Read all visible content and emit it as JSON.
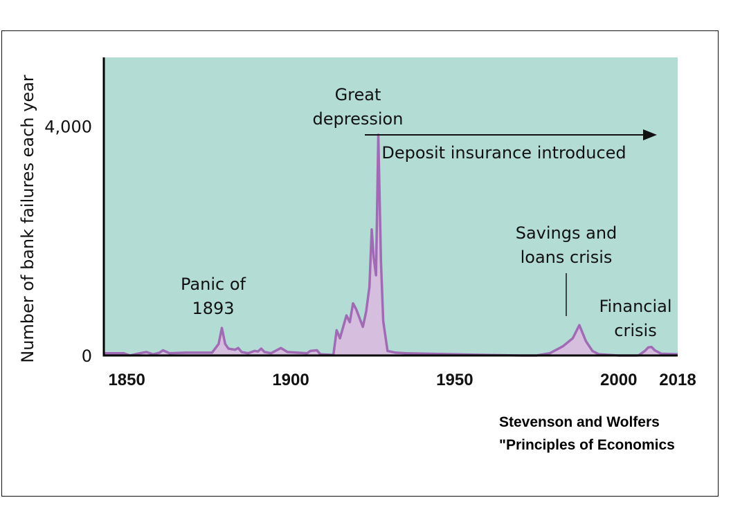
{
  "chart_data": {
    "type": "area",
    "ylabel": "Number of bank failures each year",
    "xlabel": "",
    "xlim": [
      1843,
      2018
    ],
    "ylim": [
      0,
      5200
    ],
    "x_ticks": [
      {
        "value": 1850,
        "label": "1850"
      },
      {
        "value": 1900,
        "label": "1900"
      },
      {
        "value": 1950,
        "label": "1950"
      },
      {
        "value": 2000,
        "label": "2000"
      },
      {
        "value": 2018,
        "label": "2018"
      }
    ],
    "y_ticks": [
      {
        "value": 0,
        "label": "0"
      },
      {
        "value": 4000,
        "label": "4,000"
      }
    ],
    "series": [
      {
        "values": [
          [
            1843,
            40
          ],
          [
            1849,
            40
          ],
          [
            1851,
            0
          ],
          [
            1854,
            40
          ],
          [
            1856,
            60
          ],
          [
            1858,
            20
          ],
          [
            1860,
            50
          ],
          [
            1861,
            90
          ],
          [
            1863,
            40
          ],
          [
            1868,
            50
          ],
          [
            1872,
            50
          ],
          [
            1876,
            50
          ],
          [
            1878,
            200
          ],
          [
            1879,
            480
          ],
          [
            1880,
            200
          ],
          [
            1881,
            120
          ],
          [
            1883,
            100
          ],
          [
            1884,
            130
          ],
          [
            1885,
            60
          ],
          [
            1887,
            40
          ],
          [
            1889,
            80
          ],
          [
            1890,
            70
          ],
          [
            1891,
            120
          ],
          [
            1892,
            60
          ],
          [
            1894,
            40
          ],
          [
            1897,
            130
          ],
          [
            1899,
            60
          ],
          [
            1902,
            50
          ],
          [
            1905,
            40
          ],
          [
            1906,
            80
          ],
          [
            1908,
            90
          ],
          [
            1909,
            20
          ],
          [
            1913,
            10
          ],
          [
            1914,
            440
          ],
          [
            1915,
            300
          ],
          [
            1917,
            700
          ],
          [
            1918,
            580
          ],
          [
            1919,
            910
          ],
          [
            1920,
            800
          ],
          [
            1922,
            500
          ],
          [
            1923,
            770
          ],
          [
            1924,
            1200
          ],
          [
            1924.7,
            2200
          ],
          [
            1925.3,
            1700
          ],
          [
            1926,
            1400
          ],
          [
            1926.7,
            3850
          ],
          [
            1927.5,
            1650
          ],
          [
            1928.2,
            600
          ],
          [
            1929.5,
            80
          ],
          [
            1932,
            50
          ],
          [
            1935,
            40
          ],
          [
            1950,
            20
          ],
          [
            1960,
            10
          ],
          [
            1970,
            0
          ],
          [
            1975,
            0
          ],
          [
            1979,
            40
          ],
          [
            1983,
            160
          ],
          [
            1986,
            300
          ],
          [
            1988,
            530
          ],
          [
            1990,
            250
          ],
          [
            1992,
            80
          ],
          [
            1994,
            20
          ],
          [
            2000,
            0
          ],
          [
            2006,
            0
          ],
          [
            2008,
            80
          ],
          [
            2009,
            140
          ],
          [
            2010,
            150
          ],
          [
            2011,
            90
          ],
          [
            2013,
            30
          ],
          [
            2018,
            20
          ]
        ]
      }
    ],
    "annotations": [
      {
        "lines": [
          "Panic of",
          "1893"
        ]
      },
      {
        "lines": [
          "Great",
          "depression"
        ]
      },
      {
        "text": "Deposit insurance introduced",
        "arrow": "right"
      },
      {
        "lines": [
          "Savings and",
          "loans crisis"
        ]
      },
      {
        "lines": [
          "Financial",
          "crisis"
        ]
      }
    ],
    "colors": {
      "plot_background": "#b3dcd5",
      "line": "#a06ab4",
      "fill": "#d6bedf",
      "axis": "#000000"
    },
    "grid": false
  },
  "credit": {
    "line1": "Stevenson and Wolfers",
    "line2": "\"Principles of Economics"
  }
}
